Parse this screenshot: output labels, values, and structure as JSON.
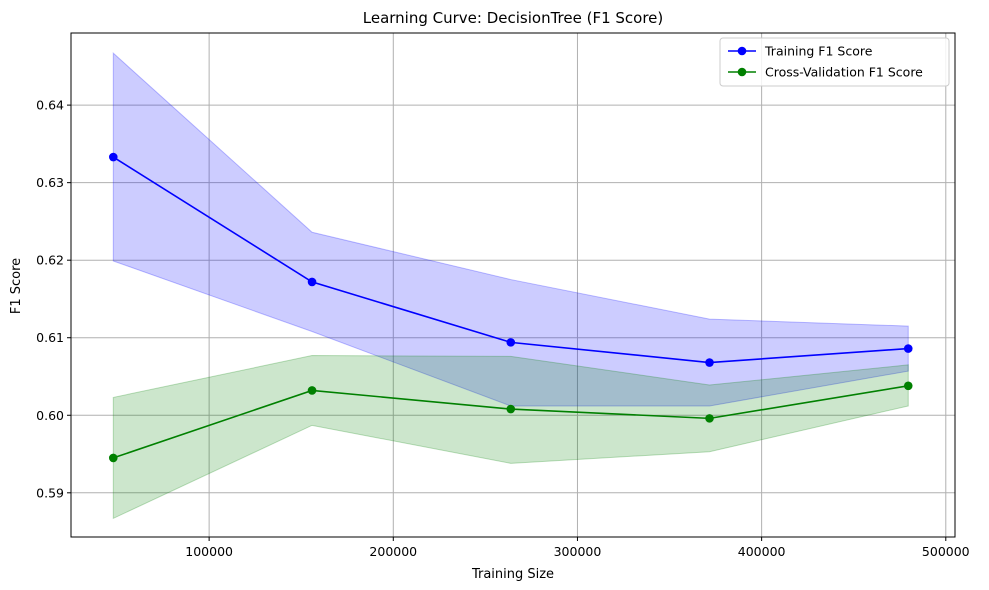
{
  "chart_data": {
    "type": "line",
    "title": "Learning Curve: DecisionTree (F1 Score)",
    "xlabel": "Training Size",
    "ylabel": "F1 Score",
    "xlim": [
      25000,
      505000
    ],
    "ylim": [
      0.5843,
      0.6493
    ],
    "xticks": [
      100000,
      200000,
      300000,
      400000,
      500000
    ],
    "yticks": [
      0.59,
      0.6,
      0.61,
      0.62,
      0.63,
      0.64
    ],
    "grid": true,
    "legend": "top-right",
    "x": [
      47961,
      155875,
      263789,
      371703,
      479617
    ],
    "series": [
      {
        "name": "Training F1 Score",
        "color": "#0000ff",
        "band_color": "#0000ff",
        "values": [
          0.6333,
          0.6172,
          0.6094,
          0.6068,
          0.6086
        ],
        "upper": [
          0.6467,
          0.6236,
          0.6175,
          0.6124,
          0.6115
        ],
        "lower": [
          0.6199,
          0.6108,
          0.6012,
          0.6012,
          0.6057
        ]
      },
      {
        "name": "Cross-Validation F1 Score",
        "color": "#008000",
        "band_color": "#008000",
        "values": [
          0.5945,
          0.6032,
          0.6008,
          0.5996,
          0.6038
        ],
        "upper": [
          0.6023,
          0.6077,
          0.6076,
          0.6039,
          0.6065
        ],
        "lower": [
          0.5867,
          0.5987,
          0.5938,
          0.5953,
          0.6012
        ]
      }
    ]
  }
}
